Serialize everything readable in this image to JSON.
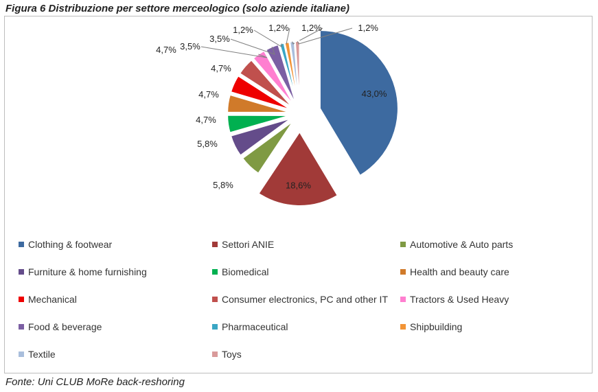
{
  "figure_title": "Figura 6 Distribuzione per settore merceologico (solo aziende italiane)",
  "footer": "Fonte: Uni CLUB MoRe back-reshoring",
  "chart_data": {
    "type": "pie",
    "title": "",
    "legend_position": "bottom",
    "exploded": true,
    "slices": [
      {
        "name": "Clothing & footwear",
        "value": 43.0,
        "label": "43,0%",
        "color": "#3d6aa0"
      },
      {
        "name": "Settori ANIE",
        "value": 18.6,
        "label": "18,6%",
        "color": "#a13a38"
      },
      {
        "name": "Automotive & Auto parts",
        "value": 5.8,
        "label": "5,8%",
        "color": "#7f9a43"
      },
      {
        "name": "Furniture & home furnishing",
        "value": 5.8,
        "label": "5,8%",
        "color": "#644c8a"
      },
      {
        "name": "Biomedical",
        "value": 4.7,
        "label": "4,7%",
        "color": "#00b050"
      },
      {
        "name": "Health and beauty care",
        "value": 4.7,
        "label": "4,7%",
        "color": "#d07a2a"
      },
      {
        "name": "Mechanical",
        "value": 4.7,
        "label": "4,7%",
        "color": "#ee0000"
      },
      {
        "name": "Consumer electronics, PC and other IT",
        "value": 4.7,
        "label": "4,7%",
        "color": "#c0504d"
      },
      {
        "name": "Tractors & Used Heavy",
        "value": 3.5,
        "label": "3,5%",
        "color": "#ff7fd0"
      },
      {
        "name": "Food & beverage",
        "value": 3.5,
        "label": "3,5%",
        "color": "#7b5fa3"
      },
      {
        "name": "Pharmaceutical",
        "value": 1.2,
        "label": "1,2%",
        "color": "#3aa6c4"
      },
      {
        "name": "Shipbuilding",
        "value": 1.2,
        "label": "1,2%",
        "color": "#f29436"
      },
      {
        "name": "Textile",
        "value": 1.2,
        "label": "1,2%",
        "color": "#a9bedc"
      },
      {
        "name": "Toys",
        "value": 1.2,
        "label": "1,2%",
        "color": "#d99a9a"
      }
    ]
  }
}
